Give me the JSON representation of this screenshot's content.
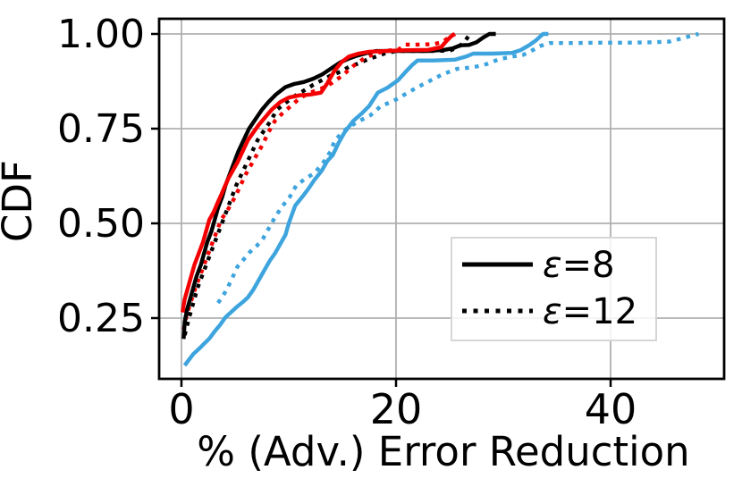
{
  "figure": {
    "background": "#ffffff",
    "grid_color": "#b0b0b0",
    "spine_color": "#000000",
    "legend_border_color": "#d6d6d6",
    "legend_bg": "rgba(255,255,255,0.85)"
  },
  "chart_data": {
    "type": "line",
    "title": "",
    "xlabel": "% (Adv.) Error Reduction",
    "ylabel": "CDF",
    "xlim": [
      -2.08,
      50.58
    ],
    "ylim": [
      0.0896,
      1.0401
    ],
    "grid": true,
    "legend_position": "lower right",
    "xticks": [
      {
        "value": 0,
        "label": "0"
      },
      {
        "value": 20,
        "label": "20"
      },
      {
        "value": 40,
        "label": "40"
      }
    ],
    "yticks": [
      {
        "value": 0.25,
        "label": "0.25"
      },
      {
        "value": 0.5,
        "label": "0.50"
      },
      {
        "value": 0.75,
        "label": "0.75"
      },
      {
        "value": 1.0,
        "label": "1.00"
      }
    ],
    "series": [
      {
        "name": "blue-solid-eps8",
        "epsilon": "8",
        "color": "#3da4de",
        "linestyle": "solid",
        "points": [
          [
            0.3,
            0.125
          ],
          [
            0.7,
            0.14
          ],
          [
            1.1,
            0.155
          ],
          [
            1.6,
            0.168
          ],
          [
            2.1,
            0.182
          ],
          [
            2.6,
            0.196
          ],
          [
            3.1,
            0.215
          ],
          [
            3.6,
            0.232
          ],
          [
            4.1,
            0.252
          ],
          [
            4.6,
            0.265
          ],
          [
            5.1,
            0.278
          ],
          [
            5.7,
            0.292
          ],
          [
            6.2,
            0.305
          ],
          [
            6.7,
            0.325
          ],
          [
            7.2,
            0.35
          ],
          [
            7.7,
            0.375
          ],
          [
            8.2,
            0.4
          ],
          [
            8.7,
            0.42
          ],
          [
            9.2,
            0.445
          ],
          [
            9.7,
            0.47
          ],
          [
            10.0,
            0.5
          ],
          [
            10.6,
            0.547
          ],
          [
            11.4,
            0.575
          ],
          [
            11.8,
            0.59
          ],
          [
            12.4,
            0.615
          ],
          [
            13.1,
            0.64
          ],
          [
            13.6,
            0.665
          ],
          [
            14.1,
            0.68
          ],
          [
            14.6,
            0.71
          ],
          [
            15.2,
            0.74
          ],
          [
            16.0,
            0.77
          ],
          [
            16.8,
            0.79
          ],
          [
            17.5,
            0.81
          ],
          [
            18.3,
            0.845
          ],
          [
            19.2,
            0.858
          ],
          [
            20.2,
            0.878
          ],
          [
            20.9,
            0.9
          ],
          [
            21.5,
            0.918
          ],
          [
            22.0,
            0.93
          ],
          [
            23.5,
            0.93
          ],
          [
            25.5,
            0.932
          ],
          [
            26.5,
            0.94
          ],
          [
            27.2,
            0.948
          ],
          [
            29.0,
            0.948
          ],
          [
            30.8,
            0.95
          ],
          [
            31.6,
            0.957
          ],
          [
            32.4,
            0.97
          ],
          [
            33.0,
            0.982
          ],
          [
            33.7,
            1.0
          ],
          [
            34.2,
            1.0
          ]
        ]
      },
      {
        "name": "blue-dotted-eps12",
        "epsilon": "12",
        "color": "#3da4de",
        "linestyle": "dotted",
        "points": [
          [
            3.4,
            0.29
          ],
          [
            3.8,
            0.305
          ],
          [
            4.3,
            0.33
          ],
          [
            4.8,
            0.36
          ],
          [
            5.2,
            0.385
          ],
          [
            5.8,
            0.405
          ],
          [
            6.4,
            0.425
          ],
          [
            7.0,
            0.44
          ],
          [
            7.6,
            0.46
          ],
          [
            8.2,
            0.49
          ],
          [
            8.8,
            0.52
          ],
          [
            9.4,
            0.545
          ],
          [
            10.1,
            0.57
          ],
          [
            10.7,
            0.6
          ],
          [
            11.5,
            0.617
          ],
          [
            12.4,
            0.633
          ],
          [
            13.2,
            0.66
          ],
          [
            13.9,
            0.69
          ],
          [
            14.3,
            0.72
          ],
          [
            15.4,
            0.75
          ],
          [
            16.4,
            0.768
          ],
          [
            17.6,
            0.785
          ],
          [
            18.6,
            0.81
          ],
          [
            19.7,
            0.822
          ],
          [
            20.8,
            0.84
          ],
          [
            21.9,
            0.858
          ],
          [
            23.2,
            0.877
          ],
          [
            24.3,
            0.893
          ],
          [
            25.7,
            0.908
          ],
          [
            27.2,
            0.912
          ],
          [
            28.4,
            0.92
          ],
          [
            29.5,
            0.932
          ],
          [
            30.7,
            0.94
          ],
          [
            31.8,
            0.944
          ],
          [
            32.6,
            0.955
          ],
          [
            33.4,
            0.968
          ],
          [
            34.3,
            0.976
          ],
          [
            36.5,
            0.976
          ],
          [
            39.0,
            0.977
          ],
          [
            41.5,
            0.977
          ],
          [
            44.0,
            0.978
          ],
          [
            45.5,
            0.98
          ],
          [
            46.6,
            0.988
          ],
          [
            47.5,
            0.995
          ],
          [
            48.2,
            1.0
          ]
        ]
      },
      {
        "name": "black-dotted-eps12",
        "epsilon": "12",
        "color": "#000000",
        "linestyle": "dotted",
        "points": [
          [
            0.3,
            0.205
          ],
          [
            0.7,
            0.25
          ],
          [
            1.1,
            0.29
          ],
          [
            1.5,
            0.33
          ],
          [
            1.9,
            0.36
          ],
          [
            2.3,
            0.39
          ],
          [
            2.7,
            0.42
          ],
          [
            3.1,
            0.45
          ],
          [
            3.5,
            0.48
          ],
          [
            3.9,
            0.51
          ],
          [
            4.3,
            0.54
          ],
          [
            4.7,
            0.57
          ],
          [
            5.1,
            0.6
          ],
          [
            5.6,
            0.63
          ],
          [
            6.1,
            0.66
          ],
          [
            6.6,
            0.69
          ],
          [
            7.1,
            0.72
          ],
          [
            7.7,
            0.745
          ],
          [
            8.3,
            0.77
          ],
          [
            8.9,
            0.8
          ],
          [
            9.8,
            0.82
          ],
          [
            10.6,
            0.837
          ],
          [
            11.5,
            0.852
          ],
          [
            12.3,
            0.866
          ],
          [
            13.1,
            0.878
          ],
          [
            13.9,
            0.89
          ],
          [
            14.8,
            0.9
          ],
          [
            15.6,
            0.913
          ],
          [
            16.5,
            0.922
          ],
          [
            17.3,
            0.932
          ],
          [
            18.1,
            0.94
          ],
          [
            18.9,
            0.948
          ],
          [
            20.0,
            0.955
          ],
          [
            22.5,
            0.955
          ],
          [
            25.0,
            0.956
          ],
          [
            25.8,
            0.965
          ],
          [
            26.4,
            0.98
          ],
          [
            26.9,
            1.0
          ]
        ]
      },
      {
        "name": "red-dotted-eps12",
        "epsilon": "12",
        "color": "#f40000",
        "linestyle": "dotted",
        "points": [
          [
            0.2,
            0.22
          ],
          [
            0.5,
            0.26
          ],
          [
            0.9,
            0.295
          ],
          [
            1.3,
            0.33
          ],
          [
            1.7,
            0.36
          ],
          [
            2.1,
            0.39
          ],
          [
            2.5,
            0.42
          ],
          [
            2.9,
            0.45
          ],
          [
            3.3,
            0.48
          ],
          [
            3.7,
            0.51
          ],
          [
            4.2,
            0.53
          ],
          [
            4.6,
            0.55
          ],
          [
            5.0,
            0.57
          ],
          [
            5.5,
            0.6
          ],
          [
            6.0,
            0.63
          ],
          [
            6.5,
            0.655
          ],
          [
            7.0,
            0.68
          ],
          [
            7.6,
            0.71
          ],
          [
            8.1,
            0.74
          ],
          [
            8.7,
            0.77
          ],
          [
            9.4,
            0.79
          ],
          [
            10.2,
            0.81
          ],
          [
            11.0,
            0.83
          ],
          [
            12.0,
            0.845
          ],
          [
            13.0,
            0.855
          ],
          [
            14.0,
            0.87
          ],
          [
            15.0,
            0.89
          ],
          [
            16.0,
            0.915
          ],
          [
            17.0,
            0.935
          ],
          [
            18.0,
            0.948
          ],
          [
            19.0,
            0.955
          ],
          [
            20.3,
            0.96
          ],
          [
            20.8,
            0.972
          ],
          [
            22.0,
            0.972
          ],
          [
            23.5,
            0.973
          ],
          [
            24.3,
            0.978
          ],
          [
            24.9,
            0.99
          ],
          [
            25.5,
            1.0
          ]
        ]
      },
      {
        "name": "black-solid-eps8",
        "epsilon": "8",
        "color": "#000000",
        "linestyle": "solid",
        "points": [
          [
            0.2,
            0.195
          ],
          [
            0.3,
            0.24
          ],
          [
            0.5,
            0.27
          ],
          [
            0.8,
            0.3
          ],
          [
            1.1,
            0.33
          ],
          [
            1.4,
            0.36
          ],
          [
            1.8,
            0.39
          ],
          [
            2.1,
            0.42
          ],
          [
            2.4,
            0.45
          ],
          [
            2.8,
            0.48
          ],
          [
            3.1,
            0.51
          ],
          [
            3.4,
            0.54
          ],
          [
            3.8,
            0.57
          ],
          [
            4.1,
            0.6
          ],
          [
            4.5,
            0.63
          ],
          [
            4.9,
            0.66
          ],
          [
            5.3,
            0.69
          ],
          [
            5.8,
            0.72
          ],
          [
            6.3,
            0.75
          ],
          [
            6.9,
            0.775
          ],
          [
            7.5,
            0.8
          ],
          [
            8.1,
            0.82
          ],
          [
            8.8,
            0.84
          ],
          [
            9.7,
            0.86
          ],
          [
            10.5,
            0.868
          ],
          [
            11.4,
            0.873
          ],
          [
            12.3,
            0.882
          ],
          [
            13.1,
            0.893
          ],
          [
            14.0,
            0.91
          ],
          [
            14.8,
            0.925
          ],
          [
            15.6,
            0.935
          ],
          [
            16.4,
            0.943
          ],
          [
            17.3,
            0.95
          ],
          [
            18.1,
            0.955
          ],
          [
            20.5,
            0.955
          ],
          [
            23.0,
            0.955
          ],
          [
            24.5,
            0.958
          ],
          [
            25.3,
            0.962
          ],
          [
            26.0,
            0.97
          ],
          [
            26.8,
            0.971
          ],
          [
            27.5,
            0.978
          ],
          [
            28.1,
            0.99
          ],
          [
            28.7,
            1.0
          ],
          [
            29.3,
            1.0
          ]
        ]
      },
      {
        "name": "red-solid-eps8",
        "epsilon": "8",
        "color": "#f40000",
        "linestyle": "solid",
        "points": [
          [
            0.1,
            0.265
          ],
          [
            0.3,
            0.3
          ],
          [
            0.6,
            0.33
          ],
          [
            0.9,
            0.36
          ],
          [
            1.2,
            0.39
          ],
          [
            1.6,
            0.42
          ],
          [
            2.0,
            0.45
          ],
          [
            2.3,
            0.48
          ],
          [
            2.6,
            0.51
          ],
          [
            3.0,
            0.53
          ],
          [
            3.3,
            0.55
          ],
          [
            3.7,
            0.575
          ],
          [
            4.0,
            0.595
          ],
          [
            4.4,
            0.62
          ],
          [
            4.8,
            0.64
          ],
          [
            5.2,
            0.66
          ],
          [
            5.7,
            0.69
          ],
          [
            6.2,
            0.72
          ],
          [
            6.7,
            0.74
          ],
          [
            7.2,
            0.76
          ],
          [
            7.8,
            0.78
          ],
          [
            8.4,
            0.8
          ],
          [
            9.2,
            0.82
          ],
          [
            10.0,
            0.832
          ],
          [
            11.0,
            0.838
          ],
          [
            12.0,
            0.84
          ],
          [
            13.0,
            0.845
          ],
          [
            13.6,
            0.87
          ],
          [
            14.2,
            0.9
          ],
          [
            14.9,
            0.925
          ],
          [
            15.6,
            0.94
          ],
          [
            16.5,
            0.948
          ],
          [
            17.5,
            0.953
          ],
          [
            19.0,
            0.955
          ],
          [
            21.0,
            0.957
          ],
          [
            23.0,
            0.958
          ],
          [
            24.2,
            0.965
          ],
          [
            24.6,
            0.978
          ],
          [
            25.0,
            0.99
          ],
          [
            25.4,
            1.0
          ]
        ]
      }
    ],
    "legend": {
      "items": [
        {
          "sym": "ε",
          "val": "=8",
          "linestyle": "solid"
        },
        {
          "sym": "ε",
          "val": "=12",
          "linestyle": "dotted"
        }
      ]
    }
  }
}
